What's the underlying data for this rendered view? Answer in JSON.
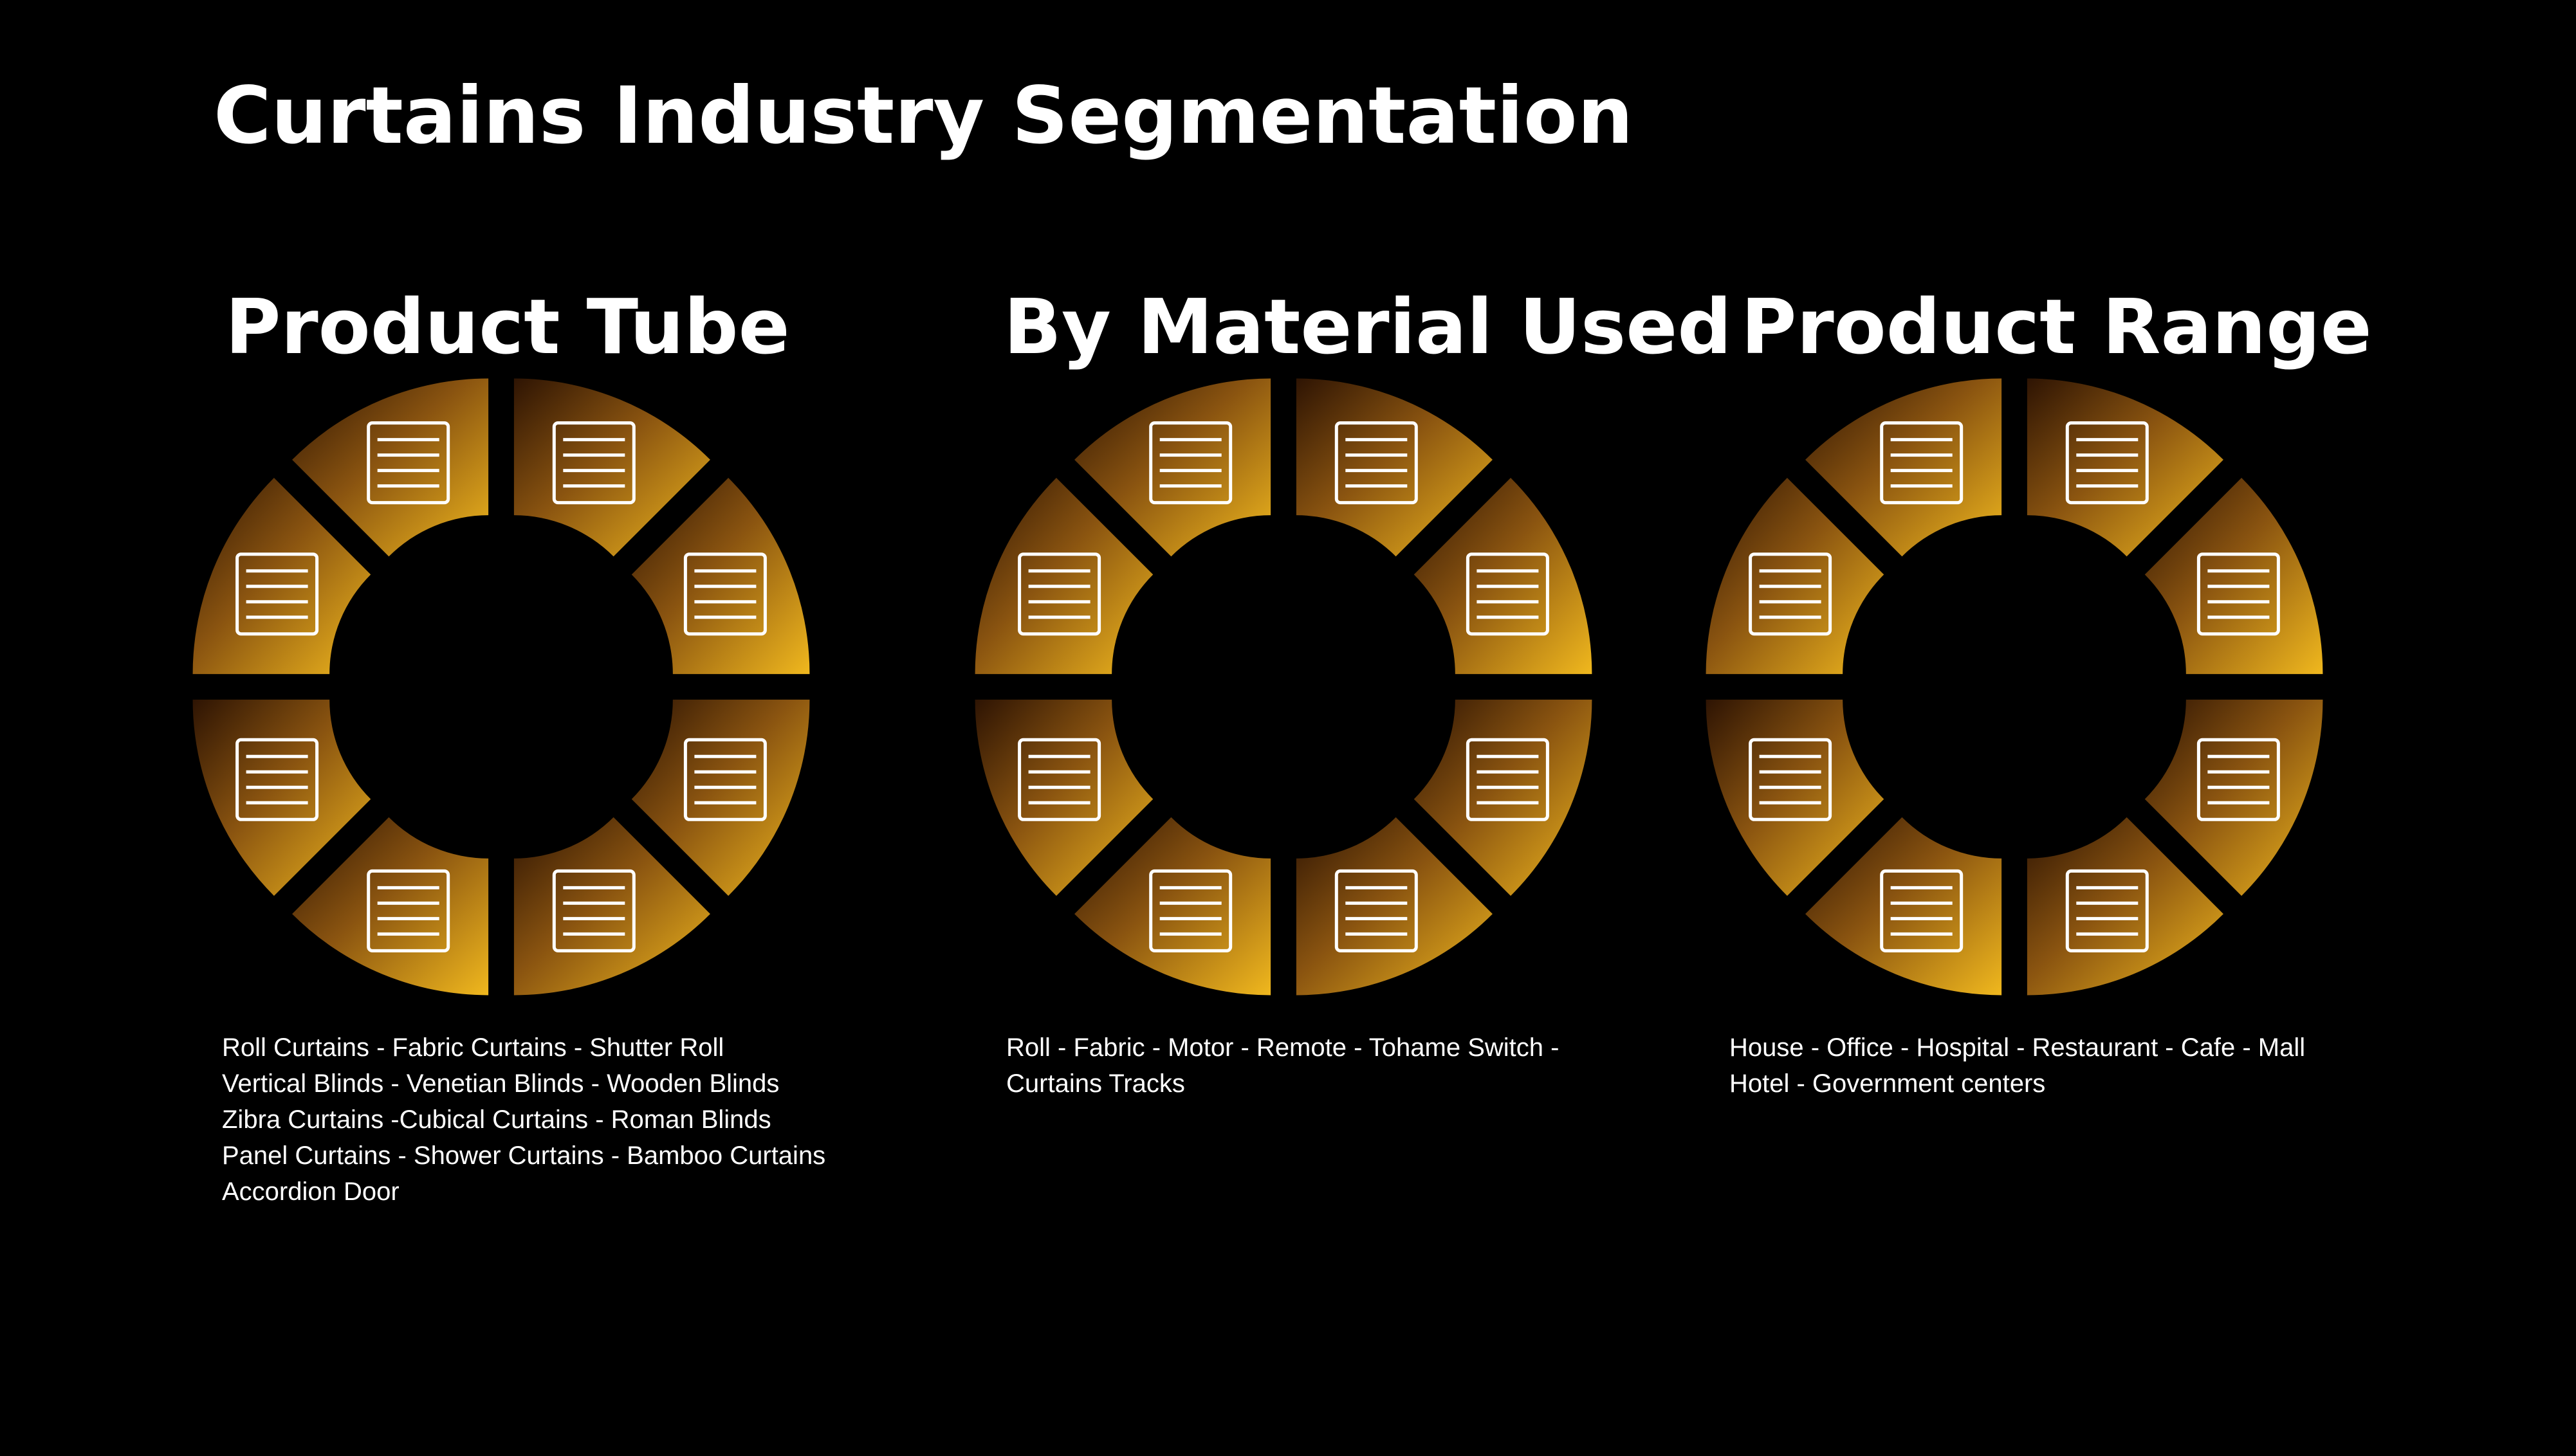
{
  "title": "Curtains Industry Segmentation",
  "sections": [
    {
      "heading": "Product Tube",
      "lines": [
        "Roll Curtains - Fabric Curtains - Shutter Roll",
        "Vertical Blinds - Venetian Blinds - Wooden Blinds",
        "Zibra Curtains -Cubical Curtains - Roman Blinds",
        "Panel Curtains - Shower Curtains - Bamboo Curtains",
        "Accordion Door"
      ]
    },
    {
      "heading": "By Material Used",
      "lines": [
        "Roll - Fabric - Motor - Remote - Tohame Switch -",
        "Curtains Tracks"
      ]
    },
    {
      "heading": "Product Range",
      "lines": [
        "House - Office - Hospital - Restaurant - Cafe - Mall",
        "Hotel - Government centers"
      ]
    }
  ]
}
